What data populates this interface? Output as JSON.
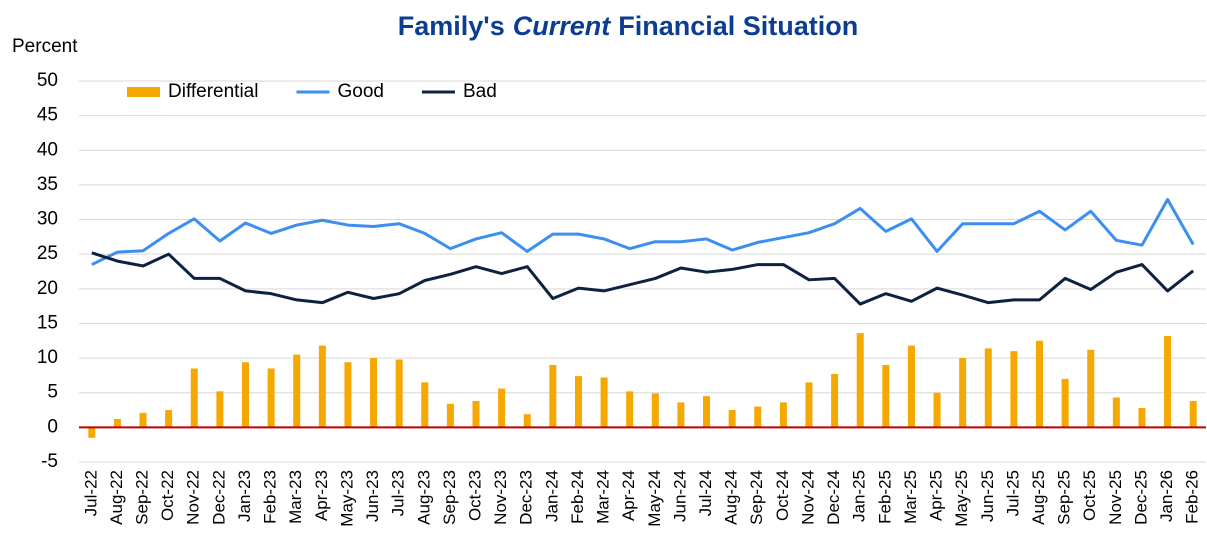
{
  "chart_data": {
    "type": "bar_line",
    "title_parts": [
      "Family's",
      "Current",
      "Financial Situation"
    ],
    "y_label": "Percent",
    "categories": [
      "Jul-22",
      "Aug-22",
      "Sep-22",
      "Oct-22",
      "Nov-22",
      "Dec-22",
      "Jan-23",
      "Feb-23",
      "Mar-23",
      "Apr-23",
      "May-23",
      "Jun-23",
      "Jul-23",
      "Aug-23",
      "Sep-23",
      "Oct-23",
      "Nov-23",
      "Dec-23",
      "Jan-24",
      "Feb-24",
      "Mar-24",
      "Apr-24",
      "May-24",
      "Jun-24",
      "Jul-24",
      "Aug-24",
      "Sep-24",
      "Oct-24",
      "Nov-24",
      "Dec-24",
      "Jan-25",
      "Feb-25",
      "Mar-25",
      "Apr-25",
      "May-25",
      "Jun-25",
      "Jul-25",
      "Aug-25",
      "Sep-25",
      "Oct-25",
      "Nov-25",
      "Dec-25",
      "Jan-26",
      "Feb-26"
    ],
    "series": [
      {
        "name": "Differential",
        "type": "bar",
        "color": "#f5a800",
        "values": [
          -1.5,
          1.2,
          2.1,
          2.5,
          8.5,
          5.2,
          9.4,
          8.5,
          10.5,
          11.8,
          9.4,
          10,
          9.8,
          6.5,
          3.4,
          3.8,
          5.6,
          1.9,
          9,
          7.4,
          7.2,
          5.2,
          4.9,
          3.6,
          4.5,
          2.5,
          3,
          3.6,
          6.5,
          7.7,
          13.6,
          9,
          11.8,
          5,
          10,
          11.4,
          11,
          12.5,
          7,
          11.2,
          4.3,
          2.8,
          13.2,
          3.8
        ]
      },
      {
        "name": "Good",
        "type": "line",
        "color": "#3d8fef",
        "values": [
          23.5,
          25.3,
          25.5,
          28,
          30.1,
          26.9,
          29.5,
          28,
          29.2,
          29.9,
          29.2,
          29,
          29.4,
          28,
          25.8,
          27.2,
          28.1,
          25.4,
          27.9,
          27.9,
          27.2,
          25.8,
          26.8,
          26.8,
          27.2,
          25.6,
          26.7,
          27.4,
          28.1,
          29.4,
          31.6,
          28.3,
          30.1,
          25.4,
          29.4,
          29.4,
          29.4,
          31.2,
          28.5,
          31.2,
          27,
          26.3,
          32.9,
          26.4
        ]
      },
      {
        "name": "Bad",
        "type": "line",
        "color": "#0d2240",
        "values": [
          25.2,
          24,
          23.3,
          25,
          21.5,
          21.5,
          19.7,
          19.3,
          18.4,
          18,
          19.5,
          18.6,
          19.3,
          21.2,
          22.1,
          23.2,
          22.2,
          23.2,
          18.6,
          20.1,
          19.7,
          20.6,
          21.5,
          23,
          22.4,
          22.8,
          23.5,
          23.5,
          21.3,
          21.5,
          17.8,
          19.3,
          18.2,
          20.1,
          19.1,
          18,
          18.4,
          18.4,
          21.5,
          19.9,
          22.4,
          23.5,
          19.7,
          22.6
        ]
      }
    ],
    "ylim": [
      -5,
      50
    ],
    "yticks": [
      -5,
      0,
      5,
      10,
      15,
      20,
      25,
      30,
      35,
      40,
      45,
      50
    ],
    "grid": true,
    "zero_line_color": "#c00000",
    "title_color": "#0b3d91",
    "legend": "top-left"
  }
}
